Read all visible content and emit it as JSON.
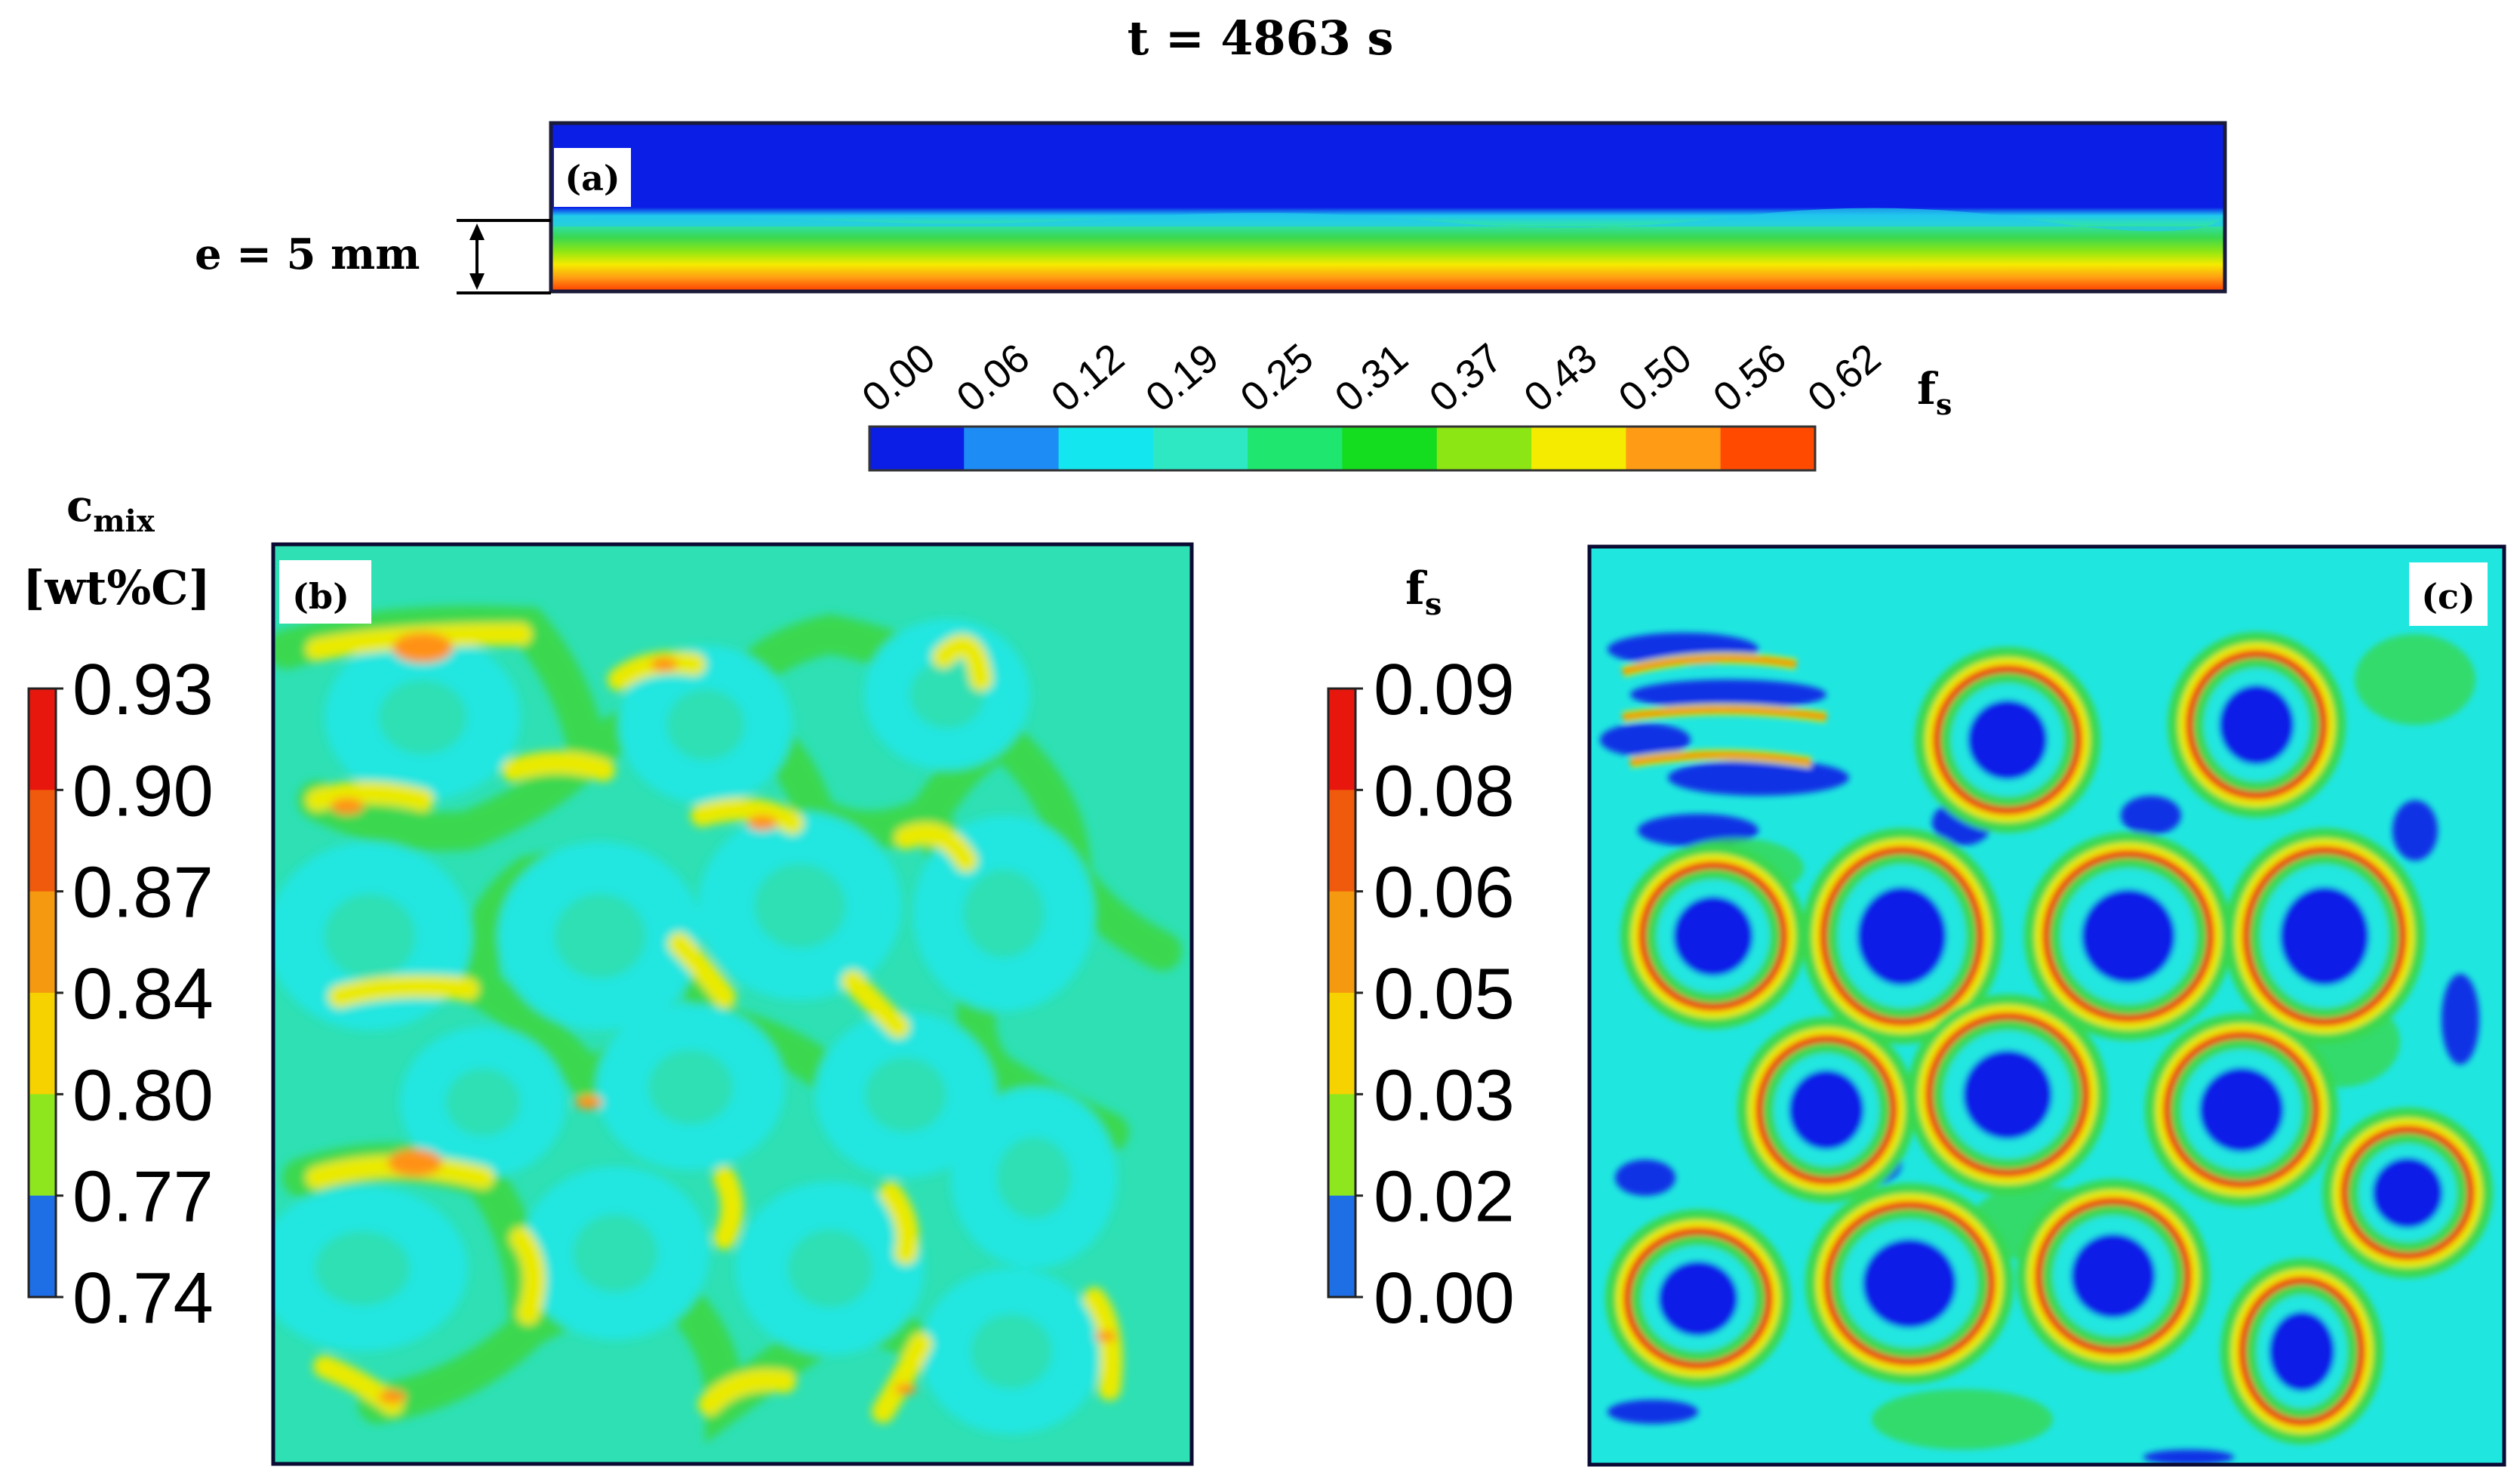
{
  "title": "t = 4863 s",
  "panel_a": {
    "label": "(a)",
    "thickness_label": "e = 5 mm",
    "colorbar": {
      "ticks": [
        "0.00",
        "0.06",
        "0.12",
        "0.19",
        "0.25",
        "0.31",
        "0.37",
        "0.43",
        "0.50",
        "0.56",
        "0.62"
      ],
      "label_main": "f",
      "label_sub": "s",
      "colors": [
        "#0a1ee6",
        "#1e8cf5",
        "#14e6f0",
        "#2ee8c4",
        "#1ee66e",
        "#14dc1e",
        "#8ce614",
        "#f5eb00",
        "#ff9b14",
        "#ff4a00"
      ]
    }
  },
  "panel_b": {
    "label": "(b)",
    "colorbar": {
      "label_main": "c",
      "label_sub": "mix",
      "unit": "[wt%C]",
      "ticks": [
        "0.93",
        "0.90",
        "0.87",
        "0.84",
        "0.80",
        "0.77",
        "0.74"
      ],
      "colors": [
        "#e8170d",
        "#f05a0d",
        "#f59a10",
        "#f5d200",
        "#8ee61e",
        "#1e6ee6"
      ]
    }
  },
  "panel_c": {
    "label": "(c)",
    "colorbar": {
      "label_main": "f",
      "label_sub": "s",
      "ticks": [
        "0.09",
        "0.08",
        "0.06",
        "0.05",
        "0.03",
        "0.02",
        "0.00"
      ],
      "colors": [
        "#e8170d",
        "#f05a0d",
        "#f59a10",
        "#f5d200",
        "#8ee61e",
        "#1e6ee6"
      ]
    }
  },
  "colors": {
    "field_blue": "#0a1ee6",
    "field_cyan": "#20e6e0",
    "field_teal": "#2ee0b4",
    "field_green": "#3ad850",
    "field_yellow": "#eaea00",
    "field_orange": "#ff9214",
    "field_red": "#f02810"
  }
}
